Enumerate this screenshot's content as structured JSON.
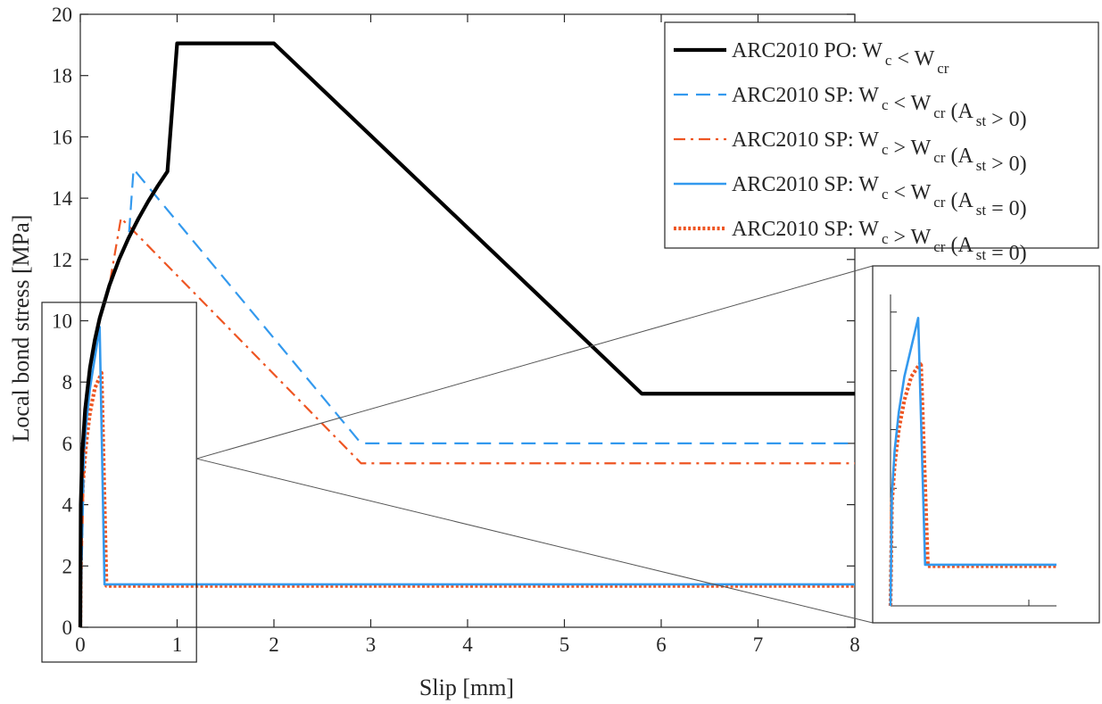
{
  "chart_data": {
    "type": "line",
    "xlabel": "Slip [mm]",
    "ylabel": "Local bond stress [MPa]",
    "xlim": [
      0,
      8
    ],
    "ylim": [
      0,
      20
    ],
    "xticks": [
      "0",
      "1",
      "2",
      "3",
      "4",
      "5",
      "6",
      "7",
      "8"
    ],
    "yticks": [
      "0",
      "2",
      "4",
      "6",
      "8",
      "10",
      "12",
      "14",
      "16",
      "18",
      "20"
    ],
    "grid": false,
    "legend_position": "top-right",
    "series": [
      {
        "name": "ARC2010 PO: W_c < W_cr",
        "legend": {
          "pre": "ARC2010 PO: W",
          "s1": "c",
          "mid": " < W",
          "s2": "cr",
          "tail": "",
          "s3": "",
          "end": ""
        },
        "color": "#000000",
        "style": "solid",
        "x": [
          0,
          0.005,
          0.02,
          0.05,
          0.1,
          0.15,
          0.2,
          0.3,
          0.4,
          0.5,
          0.6,
          0.7,
          0.8,
          0.9,
          1.0,
          2.0,
          5.8,
          8.0
        ],
        "y": [
          0,
          4.0,
          5.66,
          7.1,
          8.47,
          9.37,
          10.08,
          11.15,
          12.0,
          12.71,
          13.33,
          13.89,
          14.4,
          14.87,
          19.05,
          19.05,
          7.62,
          7.62
        ]
      },
      {
        "name": "ARC2010 SP: W_c < W_cr (A_st > 0)",
        "legend": {
          "pre": "ARC2010 SP: W",
          "s1": "c",
          "mid": " < W",
          "s2": "cr",
          "tail": " (A",
          "s3": "st",
          "end": " > 0)"
        },
        "color": "#3399ee",
        "style": "dashed",
        "x": [
          0,
          0.05,
          0.1,
          0.2,
          0.3,
          0.4,
          0.5,
          0.55,
          2.9,
          8.0
        ],
        "y": [
          0,
          7.1,
          8.47,
          10.08,
          11.15,
          12.0,
          12.71,
          14.95,
          6.0,
          6.0
        ]
      },
      {
        "name": "ARC2010 SP: W_c > W_cr (A_st > 0)",
        "legend": {
          "pre": "ARC2010 SP: W",
          "s1": "c",
          "mid": " > W",
          "s2": "cr",
          "tail": " (A",
          "s3": "st",
          "end": " > 0)"
        },
        "color": "#ee5522",
        "style": "dashdot",
        "x": [
          0,
          0.05,
          0.1,
          0.2,
          0.3,
          0.42,
          2.9,
          8.0
        ],
        "y": [
          0,
          7.1,
          8.47,
          10.08,
          11.15,
          13.35,
          5.35,
          5.35
        ]
      },
      {
        "name": "ARC2010 SP: W_c < W_cr (A_st = 0)",
        "legend": {
          "pre": "ARC2010 SP: W",
          "s1": "c",
          "mid": " < W",
          "s2": "cr",
          "tail": " (A",
          "s3": "st",
          "end": " = 0)"
        },
        "color": "#3399ee",
        "style": "solid",
        "x": [
          0,
          0.01,
          0.03,
          0.06,
          0.1,
          0.15,
          0.2,
          0.25,
          8.0
        ],
        "y": [
          0,
          3.8,
          5.3,
          6.6,
          7.8,
          8.8,
          9.8,
          1.4,
          1.4
        ]
      },
      {
        "name": "ARC2010 SP: W_c > W_cr (A_st = 0)",
        "legend": {
          "pre": "ARC2010 SP: W",
          "s1": "c",
          "mid": " > W",
          "s2": "cr",
          "tail": " (A",
          "s3": "st",
          "end": " = 0)"
        },
        "color": "#ee5522",
        "style": "dotted",
        "x": [
          0,
          0.01,
          0.03,
          0.06,
          0.1,
          0.15,
          0.22,
          0.27,
          8.0
        ],
        "y": [
          0,
          3.5,
          4.8,
          6.0,
          7.0,
          7.8,
          8.3,
          1.35,
          1.35
        ]
      }
    ],
    "inset": {
      "zoom_region": {
        "x": [
          0,
          1.2
        ],
        "y": [
          0,
          10.6
        ]
      },
      "connector_anchor": {
        "x": 1.2,
        "y": 5.5
      }
    }
  }
}
